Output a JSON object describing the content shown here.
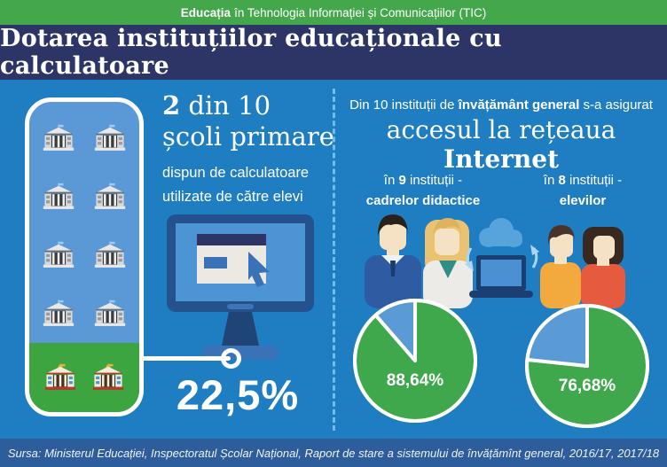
{
  "banner": {
    "bold": "Educația",
    "rest": "în Tehnologia Informației și Comunicațiilor (TIC)"
  },
  "title": "Dotarea instituțiilor educaționale cu calculatoare",
  "left_panel": {
    "stat_bold": "2",
    "stat_rest": " din 10",
    "stat_line2": "școli primare",
    "desc_line1": "dispun de calculatoare",
    "desc_line2": "utilizate de către elevi",
    "percentage": "22,5%"
  },
  "right_panel": {
    "line1_prefix": "Din 10 instituții de ",
    "line1_bold": "învățământ general",
    "line1_suffix": " s-a asigurat",
    "line2_prefix": "accesul la rețeaua ",
    "line2_bold": "Internet",
    "groups": [
      {
        "intro_prefix": "în ",
        "count": "9",
        "intro_suffix": " instituții -",
        "label": "cadrelor didactice"
      },
      {
        "intro_prefix": "în ",
        "count": "8",
        "intro_suffix": " instituții -",
        "label": "elevilor"
      }
    ]
  },
  "footer": {
    "source": "Sursa: Ministerul Educației, Inspectoratul Școlar Național, Raport de stare a sistemului de învățămînt general, 2016/17, 2017/18"
  },
  "palette": {
    "background_blue": "#1f7dc2",
    "banner_green": "#44a74b",
    "title_navy": "#2c3566",
    "panel_light_blue": "#5b99d6",
    "highlight_green": "#3da540",
    "footer_blue": "#2e5d9c",
    "pie_green": "#3fa84c",
    "pie_blue": "#5b9bd5",
    "divider_blue": "#6fbde8"
  },
  "chart_data": [
    {
      "type": "pie",
      "group": "în 9 instituții - cadrelor didactice",
      "label": "88,64%",
      "values": [
        88.64,
        11.36
      ],
      "colors": [
        "#3fa84c",
        "#5b9bd5"
      ],
      "start_angle_deg": 0,
      "direction": "clockwise",
      "legend_position": "none"
    },
    {
      "type": "pie",
      "group": "în 8 instituții - elevilor",
      "label": "76,68%",
      "values": [
        76.68,
        23.32
      ],
      "colors": [
        "#3fa84c",
        "#5b9bd5"
      ],
      "start_angle_deg": 0,
      "direction": "clockwise",
      "legend_position": "none"
    },
    {
      "type": "pictogram",
      "title": "2 din 10 școli primare dispun de calculatoare utilizate de către elevi",
      "total": 10,
      "highlighted": 2,
      "columns": 2,
      "value_label": "22,5%"
    }
  ]
}
